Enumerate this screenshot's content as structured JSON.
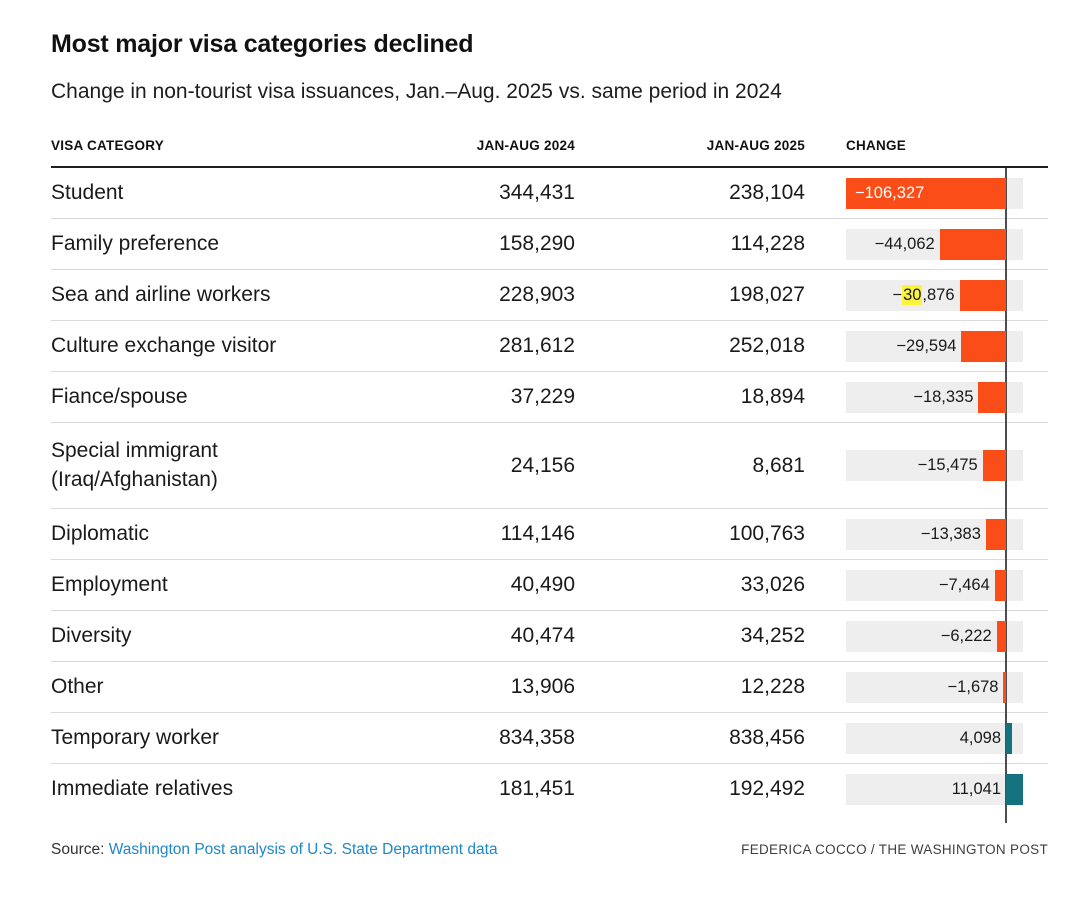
{
  "title": "Most major visa categories declined",
  "subtitle": "Change in non-tourist visa issuances, Jan.–Aug. 2025 vs. same period in 2024",
  "table": {
    "columns": [
      "VISA CATEGORY",
      "JAN-AUG 2024",
      "JAN-AUG 2025",
      "CHANGE"
    ],
    "rows": [
      {
        "category": "Student",
        "jan_aug_2024": "344,431",
        "jan_aug_2025": "238,104",
        "change": -106327,
        "change_label": "−106,327",
        "label_inside": true
      },
      {
        "category": "Family preference",
        "jan_aug_2024": "158,290",
        "jan_aug_2025": "114,228",
        "change": -44062,
        "change_label": "−44,062"
      },
      {
        "category": "Sea and airline workers",
        "jan_aug_2024": "228,903",
        "jan_aug_2025": "198,027",
        "change": -30876,
        "change_label_parts": [
          {
            "t": "−"
          },
          {
            "t": "30",
            "highlight": true
          },
          {
            "t": ",876"
          }
        ]
      },
      {
        "category": "Culture exchange visitor",
        "jan_aug_2024": "281,612",
        "jan_aug_2025": "252,018",
        "change": -29594,
        "change_label": "−29,594"
      },
      {
        "category": "Fiance/spouse",
        "jan_aug_2024": "37,229",
        "jan_aug_2025": "18,894",
        "change": -18335,
        "change_label": "−18,335"
      },
      {
        "category": "Special immigrant\n(Iraq/Afghanistan)",
        "jan_aug_2024": "24,156",
        "jan_aug_2025": "8,681",
        "change": -15475,
        "change_label": "−15,475"
      },
      {
        "category": "Diplomatic",
        "jan_aug_2024": "114,146",
        "jan_aug_2025": "100,763",
        "change": -13383,
        "change_label": "−13,383"
      },
      {
        "category": "Employment",
        "jan_aug_2024": "40,490",
        "jan_aug_2025": "33,026",
        "change": -7464,
        "change_label": "−7,464"
      },
      {
        "category": "Diversity",
        "jan_aug_2024": "40,474",
        "jan_aug_2025": "34,252",
        "change": -6222,
        "change_label": "−6,222"
      },
      {
        "category": "Other",
        "jan_aug_2024": "13,906",
        "jan_aug_2025": "12,228",
        "change": -1678,
        "change_label": "−1,678"
      },
      {
        "category": "Temporary worker",
        "jan_aug_2024": "834,358",
        "jan_aug_2025": "838,456",
        "change": 4098,
        "change_label": "4,098"
      },
      {
        "category": "Immediate relatives",
        "jan_aug_2024": "181,451",
        "jan_aug_2025": "192,492",
        "change": 11041,
        "change_label": "11,041"
      }
    ]
  },
  "chart_data": {
    "type": "bar",
    "subtype": "diverging-horizontal-bars-in-table",
    "title": "Most major visa categories declined",
    "subtitle": "Change in non-tourist visa issuances, Jan.–Aug. 2025 vs. same period in 2024",
    "categories": [
      "Student",
      "Family preference",
      "Sea and airline workers",
      "Culture exchange visitor",
      "Fiance/spouse",
      "Special immigrant (Iraq/Afghanistan)",
      "Diplomatic",
      "Employment",
      "Diversity",
      "Other",
      "Temporary worker",
      "Immediate relatives"
    ],
    "series": [
      {
        "name": "JAN-AUG 2024",
        "values": [
          344431,
          158290,
          228903,
          281612,
          37229,
          24156,
          114146,
          40490,
          40474,
          13906,
          834358,
          181451
        ]
      },
      {
        "name": "JAN-AUG 2025",
        "values": [
          238104,
          114228,
          198027,
          252018,
          18894,
          8681,
          100763,
          33026,
          34252,
          12228,
          838456,
          192492
        ]
      },
      {
        "name": "CHANGE",
        "values": [
          -106327,
          -44062,
          -30876,
          -29594,
          -18335,
          -15475,
          -13383,
          -7464,
          -6222,
          -1678,
          4098,
          11041
        ]
      }
    ],
    "bar_axis_range": [
      -106327,
      11041
    ],
    "zero_baseline": true,
    "legend": "none",
    "negative_color": "#fa4d17",
    "positive_color": "#14717e",
    "track_color": "#eeeeee",
    "highlight_note": "digits '30' of −30,876 are highlighted yellow"
  },
  "colors": {
    "negative_bar": "#fa4d17",
    "positive_bar": "#14717e",
    "bar_track": "#eeeeee",
    "highlight": "#fdf23d",
    "link_blue": "#1e87c9",
    "zero_axis": "#4d4d4d"
  },
  "footer": {
    "source_prefix": "Source: ",
    "source_link": "Washington Post analysis of U.S. State Department data",
    "byline": "FEDERICA COCCO / THE WASHINGTON POST"
  }
}
